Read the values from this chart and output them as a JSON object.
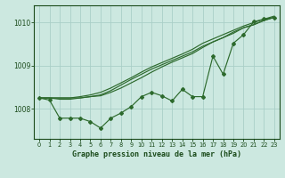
{
  "xlabel": "Graphe pression niveau de la mer (hPa)",
  "x": [
    0,
    1,
    2,
    3,
    4,
    5,
    6,
    7,
    8,
    9,
    10,
    11,
    12,
    13,
    14,
    15,
    16,
    17,
    18,
    19,
    20,
    21,
    22,
    23
  ],
  "series_smooth1": [
    1008.25,
    1008.25,
    1008.25,
    1008.25,
    1008.25,
    1008.28,
    1008.32,
    1008.42,
    1008.55,
    1008.68,
    1008.8,
    1008.92,
    1009.02,
    1009.12,
    1009.22,
    1009.32,
    1009.45,
    1009.55,
    1009.65,
    1009.78,
    1009.88,
    1009.95,
    1010.05,
    1010.12
  ],
  "series_smooth2": [
    1008.25,
    1008.25,
    1008.25,
    1008.25,
    1008.28,
    1008.32,
    1008.38,
    1008.48,
    1008.6,
    1008.72,
    1008.85,
    1008.97,
    1009.07,
    1009.17,
    1009.27,
    1009.38,
    1009.52,
    1009.62,
    1009.72,
    1009.82,
    1009.92,
    1010.0,
    1010.08,
    1010.15
  ],
  "series_smooth3": [
    1008.25,
    1008.25,
    1008.22,
    1008.22,
    1008.25,
    1008.28,
    1008.3,
    1008.38,
    1008.48,
    1008.6,
    1008.72,
    1008.85,
    1008.97,
    1009.08,
    1009.18,
    1009.28,
    1009.42,
    1009.55,
    1009.65,
    1009.75,
    1009.88,
    1009.95,
    1010.05,
    1010.12
  ],
  "series_zigzag": [
    1008.25,
    1008.2,
    1007.78,
    1007.78,
    1007.78,
    1007.7,
    1007.55,
    1007.78,
    1007.9,
    1008.05,
    1008.28,
    1008.38,
    1008.3,
    1008.18,
    1008.45,
    1008.28,
    1008.28,
    1009.22,
    1008.8,
    1009.52,
    1009.72,
    1010.02,
    1010.08,
    1010.12
  ],
  "bg_color": "#cce8e0",
  "line_color": "#2d6a2d",
  "grid_color": "#aacfc8",
  "text_color": "#1a4a1a",
  "ylim": [
    1007.3,
    1010.4
  ],
  "yticks": [
    1008,
    1009,
    1010
  ],
  "xticks": [
    0,
    1,
    2,
    3,
    4,
    5,
    6,
    7,
    8,
    9,
    10,
    11,
    12,
    13,
    14,
    15,
    16,
    17,
    18,
    19,
    20,
    21,
    22,
    23
  ]
}
